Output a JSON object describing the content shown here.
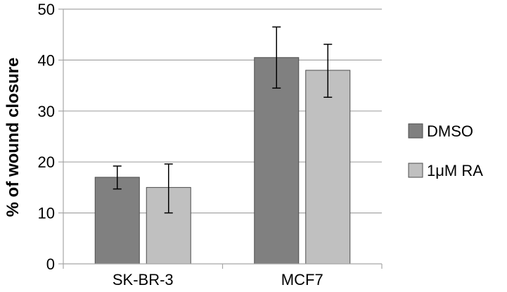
{
  "chart_data": {
    "type": "bar",
    "title": "",
    "xlabel": "",
    "ylabel": "% of wound closure",
    "ylim": [
      0,
      50
    ],
    "yticks": [
      0,
      10,
      20,
      30,
      40,
      50
    ],
    "categories": [
      "SK-BR-3",
      "MCF7"
    ],
    "series": [
      {
        "name": "DMSO",
        "values": [
          17,
          40.5
        ],
        "error_low": [
          14.7,
          34.5
        ],
        "error_high": [
          19.2,
          46.5
        ],
        "color": "#808080"
      },
      {
        "name": "1μM RA",
        "values": [
          15,
          38
        ],
        "error_low": [
          10,
          32.7
        ],
        "error_high": [
          19.6,
          43.1
        ],
        "color": "#c0c0c0"
      }
    ],
    "grid": true,
    "legend_position": "right"
  }
}
